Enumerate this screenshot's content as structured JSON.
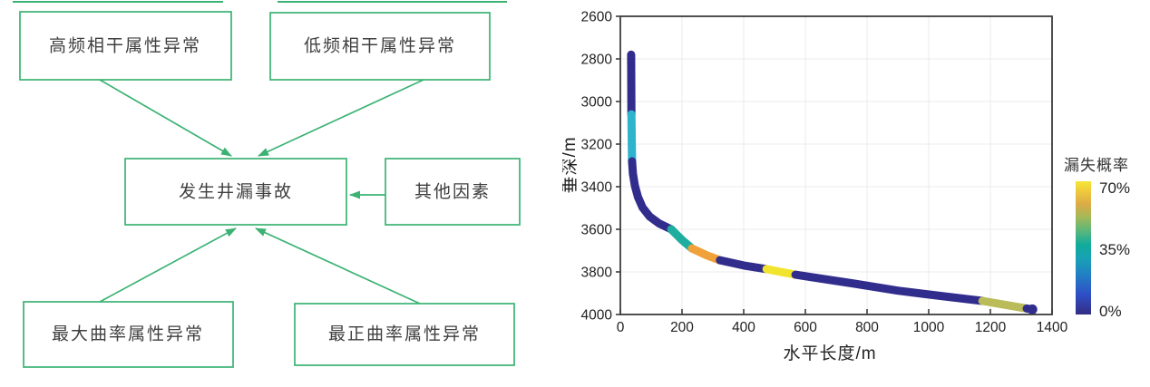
{
  "figure": {
    "background": "#ffffff"
  },
  "diagram": {
    "accent_color": "#3bb273",
    "text_color": "#3f3f3f",
    "center_node_id": "leak-accident",
    "nodes": [
      {
        "id": "high-freq-coherence",
        "label": "高频相干属性异常"
      },
      {
        "id": "low-freq-coherence",
        "label": "低频相干属性异常"
      },
      {
        "id": "leak-accident",
        "label": "发生井漏事故"
      },
      {
        "id": "other-factors",
        "label": "其他因素"
      },
      {
        "id": "max-curvature",
        "label": "最大曲率属性异常"
      },
      {
        "id": "most-positive-curvature",
        "label": "最正曲率属性异常"
      }
    ],
    "edges": [
      {
        "from": "high-freq-coherence",
        "to": "leak-accident"
      },
      {
        "from": "low-freq-coherence",
        "to": "leak-accident"
      },
      {
        "from": "other-factors",
        "to": "leak-accident"
      },
      {
        "from": "max-curvature",
        "to": "leak-accident"
      },
      {
        "from": "most-positive-curvature",
        "to": "leak-accident"
      }
    ]
  },
  "chart_data": {
    "type": "line",
    "title": "",
    "xlabel": "水平长度/m",
    "ylabel": "垂深/m",
    "xlim": [
      0,
      1400
    ],
    "ylim": [
      2600,
      4000
    ],
    "y_axis_depth_increases_downward": true,
    "xticks": [
      0,
      200,
      400,
      600,
      800,
      1000,
      1200,
      1400
    ],
    "yticks": [
      2600,
      2800,
      3000,
      3200,
      3400,
      3600,
      3800,
      4000
    ],
    "grid": "on",
    "colorbar": {
      "label": "漏失概率",
      "ticks": [
        {
          "label": "70%",
          "frac": 1.0
        },
        {
          "label": "35%",
          "frac": 0.5
        },
        {
          "label": "0%",
          "frac": 0.0
        }
      ],
      "gradient_bottom_to_top": [
        {
          "offset": 0.0,
          "color": "#342c84"
        },
        {
          "offset": 0.15,
          "color": "#2e4fc5"
        },
        {
          "offset": 0.3,
          "color": "#2180c3"
        },
        {
          "offset": 0.42,
          "color": "#18a1b5"
        },
        {
          "offset": 0.52,
          "color": "#0fab9c"
        },
        {
          "offset": 0.63,
          "color": "#5cb77a"
        },
        {
          "offset": 0.73,
          "color": "#a3b958"
        },
        {
          "offset": 0.83,
          "color": "#ddab46"
        },
        {
          "offset": 0.92,
          "color": "#eec83c"
        },
        {
          "offset": 1.0,
          "color": "#f5e636"
        }
      ]
    },
    "series": [
      {
        "name": "well-trajectory",
        "stroke_width": 9,
        "segments": [
          {
            "leak_probability_pct": 0,
            "color": "#312d8d",
            "points": [
              [
                35,
                2780
              ],
              [
                36,
                3060
              ]
            ]
          },
          {
            "leak_probability_pct": 40,
            "color": "#2eb4cd",
            "points": [
              [
                36,
                3060
              ],
              [
                38,
                3281
              ]
            ]
          },
          {
            "leak_probability_pct": 0,
            "color": "#312d8d",
            "points": [
              [
                38,
                3281
              ],
              [
                41,
                3340
              ],
              [
                47,
                3395
              ],
              [
                57,
                3448
              ],
              [
                72,
                3498
              ],
              [
                95,
                3540
              ],
              [
                125,
                3572
              ],
              [
                165,
                3600
              ]
            ]
          },
          {
            "leak_probability_pct": 38,
            "color": "#1ead9e",
            "points": [
              [
                165,
                3600
              ],
              [
                200,
                3650
              ],
              [
                232,
                3690
              ]
            ]
          },
          {
            "leak_probability_pct": 60,
            "color": "#f0a139",
            "points": [
              [
                232,
                3690
              ],
              [
                280,
                3722
              ],
              [
                323,
                3745
              ]
            ]
          },
          {
            "leak_probability_pct": 0,
            "color": "#312d8d",
            "points": [
              [
                323,
                3745
              ],
              [
                400,
                3770
              ],
              [
                474,
                3787
              ]
            ]
          },
          {
            "leak_probability_pct": 70,
            "color": "#f1e42f",
            "points": [
              [
                474,
                3787
              ],
              [
                520,
                3800
              ],
              [
                568,
                3813
              ]
            ]
          },
          {
            "leak_probability_pct": 0,
            "color": "#312d8d",
            "points": [
              [
                568,
                3813
              ],
              [
                750,
                3853
              ],
              [
                900,
                3888
              ],
              [
                1050,
                3915
              ],
              [
                1174,
                3936
              ]
            ]
          },
          {
            "leak_probability_pct": 50,
            "color": "#b9bc58",
            "points": [
              [
                1174,
                3936
              ],
              [
                1318,
                3972
              ]
            ]
          },
          {
            "leak_probability_pct": 0,
            "color": "#312d8d",
            "points": [
              [
                1318,
                3972
              ],
              [
                1336,
                3976
              ]
            ]
          }
        ]
      }
    ],
    "end_marker": {
      "x": 1336,
      "depth": 3976,
      "color": "#312d8d"
    }
  }
}
